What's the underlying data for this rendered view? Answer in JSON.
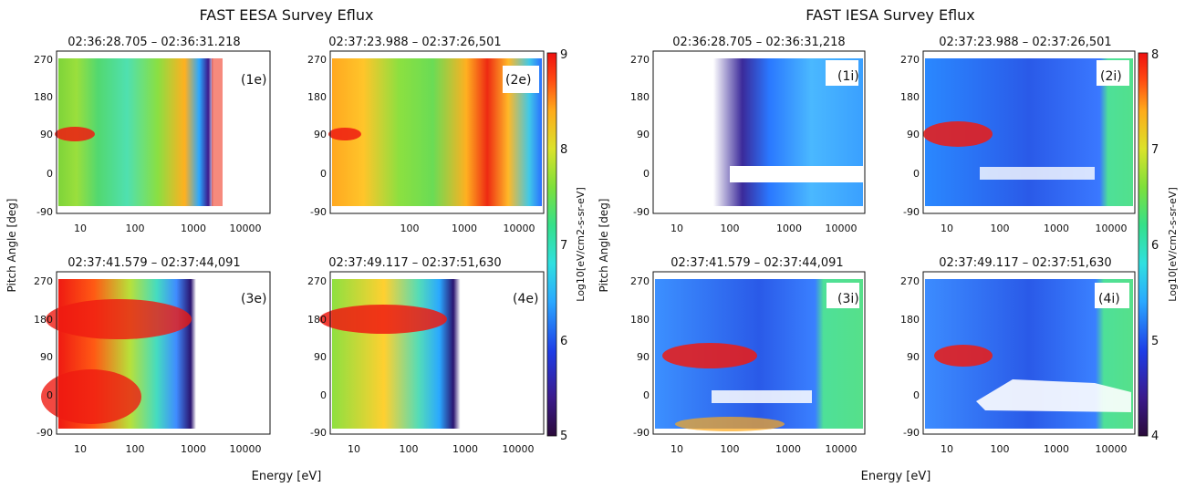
{
  "titles": {
    "eesa": "FAST EESA Survey Eflux",
    "iesa": "FAST  IESA Survey Eflux"
  },
  "axes": {
    "xlabel": "Energy [eV]",
    "ylabel": "Pitch Angle [deg]",
    "colorbar_label_eesa": "Log10[eV/cm2-s-sr-eV]",
    "colorbar_label_iesa": "Log10[eV/cm2-s-sr-eV]"
  },
  "chart_data": [
    {
      "type": "heatmap",
      "instrument": "EESA",
      "panel_label": "(1e)",
      "time_range": "02:36:28.705  –  02:36:31.218",
      "xlabel": "Energy [eV]",
      "ylabel": "Pitch Angle [deg]",
      "xscale": "log",
      "xlim": [
        5,
        30000
      ],
      "ylim": [
        -100,
        280
      ],
      "x_ticks": [
        "10",
        "100",
        "1000",
        "10000"
      ],
      "y_ticks": [
        "-90",
        "0",
        "90",
        "180",
        "270"
      ],
      "colorbar_range": [
        5,
        9
      ],
      "colorbar_ticks": [
        "5",
        "6",
        "7",
        "8",
        "9"
      ],
      "cutoff_energy": 8000,
      "features": [
        {
          "energy": [
            1500,
            3000
          ],
          "pitch_angle": [
            -90,
            270
          ],
          "log_eflux": 8.6,
          "desc": "vertical band"
        },
        {
          "energy": [
            6,
            20
          ],
          "pitch_angle": [
            70,
            110
          ],
          "log_eflux": 8.8,
          "desc": "field-aligned peak"
        }
      ]
    },
    {
      "type": "heatmap",
      "instrument": "EESA",
      "panel_label": "(2e)",
      "time_range": "02:37:23.988  –  02:37:26,501",
      "xlabel": "Energy [eV]",
      "ylabel": "Pitch Angle [deg]",
      "xscale": "log",
      "xlim": [
        5,
        30000
      ],
      "ylim": [
        -100,
        280
      ],
      "x_ticks": [
        "100",
        "1000",
        "10000"
      ],
      "y_ticks": [
        "-90",
        "0",
        "90",
        "180",
        "270"
      ],
      "colorbar_range": [
        5,
        9
      ],
      "colorbar_ticks": [
        "5",
        "6",
        "7",
        "8",
        "9"
      ],
      "cutoff_energy": 30000,
      "features": [
        {
          "energy": [
            3500,
            8000
          ],
          "pitch_angle": [
            -90,
            270
          ],
          "log_eflux": 8.9,
          "desc": "vertical band"
        },
        {
          "energy": [
            6,
            20
          ],
          "pitch_angle": [
            70,
            110
          ],
          "log_eflux": 8.8,
          "desc": "field-aligned peak"
        }
      ]
    },
    {
      "type": "heatmap",
      "instrument": "EESA",
      "panel_label": "(3e)",
      "time_range": "02:37:41.579  –  02:37:44,091",
      "xlabel": "Energy [eV]",
      "ylabel": "Pitch Angle [deg]",
      "xscale": "log",
      "xlim": [
        5,
        30000
      ],
      "ylim": [
        -100,
        280
      ],
      "x_ticks": [
        "10",
        "100",
        "1000",
        "10000"
      ],
      "y_ticks": [
        "-90",
        "0",
        "90",
        "180",
        "270"
      ],
      "colorbar_range": [
        5,
        9
      ],
      "colorbar_ticks": [
        "5",
        "6",
        "7",
        "8",
        "9"
      ],
      "cutoff_energy": 5000,
      "features": [
        {
          "energy": [
            5,
            2000
          ],
          "pitch_angle": [
            120,
            240
          ],
          "log_eflux": 8.9,
          "desc": "upgoing beam"
        },
        {
          "energy": [
            5,
            200
          ],
          "pitch_angle": [
            -90,
            60
          ],
          "log_eflux": 8.9,
          "desc": "low-energy flux"
        }
      ]
    },
    {
      "type": "heatmap",
      "instrument": "EESA",
      "panel_label": "(4e)",
      "time_range": "02:37:49.117  –  02:37:51,630",
      "xlabel": "Energy [eV]",
      "ylabel": "Pitch Angle [deg]",
      "xscale": "log",
      "xlim": [
        5,
        30000
      ],
      "ylim": [
        -100,
        280
      ],
      "x_ticks": [
        "10",
        "100",
        "1000",
        "10000"
      ],
      "y_ticks": [
        "-90",
        "0",
        "90",
        "180",
        "270"
      ],
      "colorbar_range": [
        5,
        9
      ],
      "colorbar_ticks": [
        "5",
        "6",
        "7",
        "8",
        "9"
      ],
      "cutoff_energy": 5000,
      "features": [
        {
          "energy": [
            5,
            700
          ],
          "pitch_angle": [
            130,
            230
          ],
          "log_eflux": 8.9,
          "desc": "upgoing beam"
        }
      ]
    },
    {
      "type": "heatmap",
      "instrument": "IESA",
      "panel_label": "(1i)",
      "time_range": "02:36:28.705  –  02:36:31,218",
      "xlabel": "Energy [eV]",
      "ylabel": "Pitch Angle [deg]",
      "xscale": "log",
      "xlim": [
        4,
        30000
      ],
      "ylim": [
        -100,
        280
      ],
      "x_ticks": [
        "10",
        "100",
        "1000",
        "10000"
      ],
      "y_ticks": [
        "-90",
        "0",
        "90",
        "180",
        "270"
      ],
      "colorbar_range": [
        4,
        8
      ],
      "colorbar_ticks": [
        "4",
        "5",
        "6",
        "7",
        "8"
      ],
      "features": [
        {
          "energy": [
            500,
            30000
          ],
          "pitch_angle": [
            -90,
            270
          ],
          "log_eflux": 5.6,
          "desc": "broad flux"
        }
      ]
    },
    {
      "type": "heatmap",
      "instrument": "IESA",
      "panel_label": "(2i)",
      "time_range": "02:37:23.988  –  02:37:26,501",
      "xlabel": "Energy [eV]",
      "ylabel": "Pitch Angle [deg]",
      "xscale": "log",
      "xlim": [
        4,
        30000
      ],
      "ylim": [
        -100,
        280
      ],
      "x_ticks": [
        "10",
        "100",
        "1000",
        "10000"
      ],
      "y_ticks": [
        "-90",
        "0",
        "90",
        "180",
        "270"
      ],
      "colorbar_range": [
        4,
        8
      ],
      "colorbar_ticks": [
        "4",
        "5",
        "6",
        "7",
        "8"
      ],
      "features": [
        {
          "energy": [
            5,
            60
          ],
          "pitch_angle": [
            60,
            120
          ],
          "log_eflux": 7.8,
          "desc": "ion beam"
        }
      ]
    },
    {
      "type": "heatmap",
      "instrument": "IESA",
      "panel_label": "(3i)",
      "time_range": "02:37:41.579  –  02:37:44,091",
      "xlabel": "Energy [eV]",
      "ylabel": "Pitch Angle [deg]",
      "xscale": "log",
      "xlim": [
        4,
        30000
      ],
      "ylim": [
        -100,
        280
      ],
      "x_ticks": [
        "10",
        "100",
        "1000",
        "10000"
      ],
      "y_ticks": [
        "-90",
        "0",
        "90",
        "180",
        "270"
      ],
      "colorbar_range": [
        4,
        8
      ],
      "colorbar_ticks": [
        "4",
        "5",
        "6",
        "7",
        "8"
      ],
      "features": [
        {
          "energy": [
            10,
            200
          ],
          "pitch_angle": [
            60,
            120
          ],
          "log_eflux": 7.9,
          "desc": "ion beam"
        },
        {
          "energy": [
            20,
            400
          ],
          "pitch_angle": [
            -90,
            -60
          ],
          "log_eflux": 7.0,
          "desc": "downgoing flux"
        }
      ]
    },
    {
      "type": "heatmap",
      "instrument": "IESA",
      "panel_label": "(4i)",
      "time_range": "02:37:49.117  –  02:37:51,630",
      "xlabel": "Energy [eV]",
      "ylabel": "Pitch Angle [deg]",
      "xscale": "log",
      "xlim": [
        4,
        30000
      ],
      "ylim": [
        -100,
        280
      ],
      "x_ticks": [
        "10",
        "100",
        "1000",
        "10000"
      ],
      "y_ticks": [
        "-90",
        "0",
        "90",
        "180",
        "270"
      ],
      "colorbar_range": [
        4,
        8
      ],
      "colorbar_ticks": [
        "4",
        "5",
        "6",
        "7",
        "8"
      ],
      "features": [
        {
          "energy": [
            10,
            60
          ],
          "pitch_angle": [
            70,
            110
          ],
          "log_eflux": 7.8,
          "desc": "ion beam"
        }
      ]
    }
  ]
}
